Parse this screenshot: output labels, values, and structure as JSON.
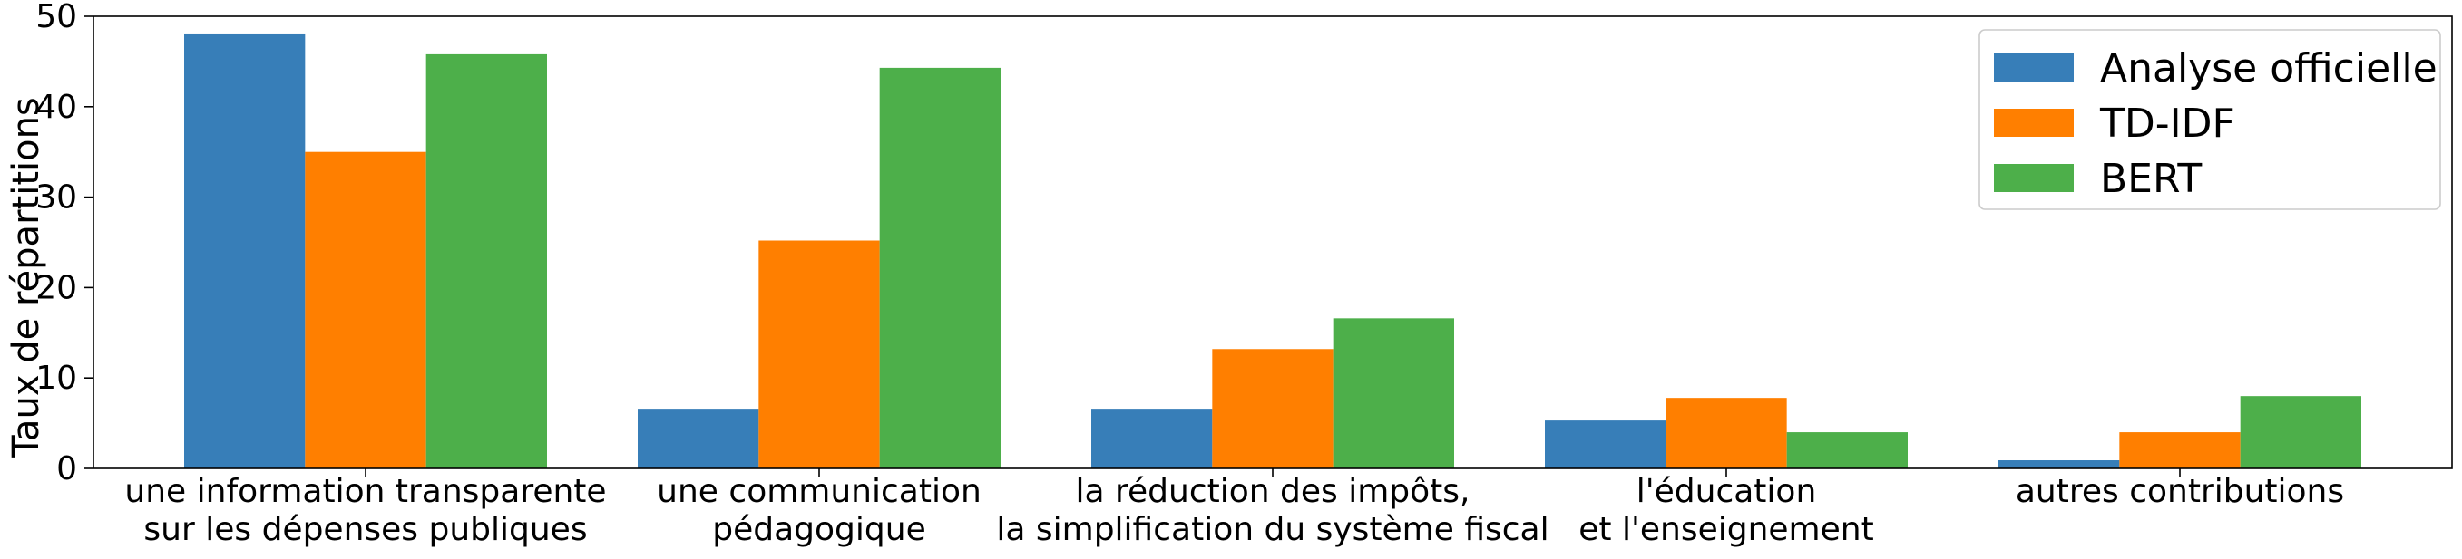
{
  "chart_data": {
    "type": "bar",
    "title": "",
    "xlabel": "",
    "ylabel": "Taux de répartitions",
    "ylim": [
      0,
      50
    ],
    "yticks": [
      "0",
      "10",
      "20",
      "30",
      "40",
      "50"
    ],
    "grid": false,
    "legend_position": "top-right",
    "categories": [
      [
        "une information transparente",
        "sur les dépenses publiques"
      ],
      [
        "une communication",
        "pédagogique"
      ],
      [
        "la réduction des impôts,",
        "la simplification du système fiscal"
      ],
      [
        "l'éducation",
        "et l'enseignement"
      ],
      [
        "autres contributions"
      ]
    ],
    "series": [
      {
        "name": "Analyse officielle",
        "color": "#377eb8",
        "values": [
          48.1,
          6.6,
          6.6,
          5.3,
          0.9
        ]
      },
      {
        "name": "TD-IDF",
        "color": "#ff7f00",
        "values": [
          35.0,
          25.2,
          13.2,
          7.8,
          4.0
        ]
      },
      {
        "name": "BERT",
        "color": "#4daf4a",
        "values": [
          45.8,
          44.3,
          16.6,
          4.0,
          8.0
        ]
      }
    ]
  }
}
